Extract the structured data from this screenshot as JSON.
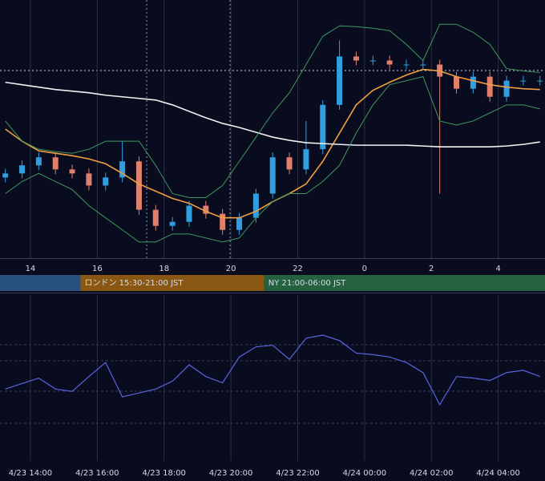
{
  "chart_data": [
    {
      "type": "candlestick",
      "x": [
        13.25,
        13.75,
        14.25,
        14.75,
        15.25,
        15.75,
        16.25,
        16.75,
        17.25,
        17.75,
        18.25,
        18.75,
        19.25,
        19.75,
        20.25,
        20.75,
        21.25,
        21.75,
        22.25,
        22.75,
        23.25,
        23.75,
        24.25,
        24.75,
        25.25,
        25.75,
        26.25,
        26.75,
        27.25,
        27.75,
        28.25,
        28.75,
        29.25
      ],
      "open": [
        50,
        52.5,
        57.5,
        62.5,
        55,
        52.5,
        45,
        50,
        60,
        30,
        20,
        22.5,
        32.5,
        27.5,
        17.5,
        25,
        40,
        62.5,
        55,
        67.5,
        95,
        125,
        122.5,
        122.5,
        120,
        120,
        120,
        112.5,
        105,
        112.5,
        100,
        110,
        110
      ],
      "high": [
        55.5,
        60.5,
        65.5,
        65.5,
        58,
        55.5,
        53,
        72.5,
        63,
        33,
        25.5,
        35.5,
        35.5,
        30.5,
        28,
        43,
        65.5,
        65.5,
        85,
        98,
        135,
        128,
        125.5,
        125.5,
        123,
        123,
        123,
        115.5,
        115.5,
        115.5,
        113,
        113,
        113
      ],
      "low": [
        47,
        49.5,
        54.5,
        52,
        49.5,
        42,
        42,
        47,
        27,
        17,
        17,
        19.5,
        24.5,
        14.5,
        14.5,
        22,
        37,
        52,
        52,
        64.5,
        92,
        119.5,
        119.5,
        117,
        117,
        117,
        40,
        102,
        102,
        97,
        97,
        107,
        107
      ],
      "close": [
        52.5,
        57.5,
        62.5,
        55,
        52.5,
        45,
        50,
        60,
        30,
        20,
        22.5,
        32.5,
        27.5,
        17.5,
        25,
        40,
        62.5,
        55,
        67.5,
        95,
        125,
        122.5,
        122.5,
        120,
        120,
        120,
        112.5,
        105,
        112.5,
        100,
        110,
        110,
        110
      ],
      "up_color": "#2f9fe0",
      "down_color": "#e07f6b",
      "lines": [
        {
          "color": "#f0a040",
          "values": [
            80,
            72.5,
            66.5,
            65,
            63.5,
            61.5,
            58.5,
            52.5,
            46,
            41.5,
            37,
            34,
            29,
            25,
            25,
            29,
            35,
            40,
            46,
            60,
            77.5,
            95,
            104,
            109,
            113.5,
            117,
            116,
            112.5,
            110,
            107.5,
            106,
            105,
            104.5
          ]
        },
        {
          "color": "#f2f2f2",
          "values": [
            109,
            107.5,
            106,
            104.5,
            103.5,
            102.5,
            101,
            100,
            99,
            98,
            95,
            91,
            87,
            83.5,
            81,
            78,
            75,
            73,
            71.5,
            71,
            70.5,
            70,
            70,
            70,
            70,
            69.5,
            69,
            69,
            69,
            69,
            69.5,
            70.5,
            72
          ]
        },
        {
          "color": "#3f9a5e",
          "values": [
            85,
            72.5,
            67.5,
            66,
            65,
            67.5,
            72.5,
            72.5,
            72.5,
            57.5,
            40,
            37.5,
            37.5,
            45,
            60,
            75,
            90,
            102.5,
            120,
            137.5,
            144,
            143.5,
            142.5,
            141,
            132.5,
            122.5,
            145,
            145,
            140,
            132.5,
            117.5,
            116,
            115
          ]
        },
        {
          "color": "#3f9a5e",
          "values": [
            40,
            47.5,
            52.5,
            47.5,
            42.5,
            32.5,
            25,
            17.5,
            10,
            10,
            15,
            15,
            12.5,
            10,
            12.5,
            25,
            35,
            40,
            40,
            47.5,
            57.5,
            77.5,
            95,
            107.5,
            110,
            112.5,
            85,
            82.5,
            85,
            90,
            95,
            95,
            92.5
          ]
        }
      ],
      "xlim": [
        13.09,
        29.4
      ],
      "ylim": [
        0,
        160
      ],
      "xticks": [
        14,
        16,
        18,
        20,
        22,
        {
          "value": 24,
          "label": "0"
        },
        {
          "value": 26,
          "label": "2"
        },
        {
          "value": 28,
          "label": "4"
        }
      ],
      "sessions": [
        {
          "start": 9,
          "end": 15.5,
          "color": "#27507f"
        },
        {
          "start": 15.5,
          "end": 21,
          "color": "#8a5712",
          "label": "ロンドン 15:30-21:00 JST"
        },
        {
          "start": 21,
          "end": 30,
          "color": "#25613f",
          "label": "NY 21:00-06:00 JST"
        }
      ]
    },
    {
      "type": "line",
      "x": [
        13.25,
        13.75,
        14.25,
        14.75,
        15.25,
        15.75,
        16.25,
        16.75,
        17.25,
        17.75,
        18.25,
        18.75,
        19.25,
        19.75,
        20.25,
        20.75,
        21.25,
        21.75,
        22.25,
        22.75,
        23.25,
        23.75,
        24.25,
        24.75,
        25.25,
        25.75,
        26.25,
        26.75,
        27.25,
        27.75,
        28.25,
        28.75,
        29.25
      ],
      "values": [
        46,
        49.5,
        53,
        46,
        44.5,
        54,
        63,
        41,
        43.5,
        46,
        51,
        61.5,
        54,
        50,
        66.5,
        73,
        74,
        65,
        78.5,
        80.5,
        77,
        69,
        68,
        66.5,
        63,
        56.5,
        36,
        54,
        53,
        51.5,
        56.5,
        58,
        54
      ],
      "color": "#5866e0",
      "xlim": [
        13.09,
        29.4
      ],
      "ylim": [
        0,
        100
      ],
      "xticks": [
        {
          "value": 14,
          "label": "4/23 14:00"
        },
        {
          "value": 16,
          "label": "4/23 16:00"
        },
        {
          "value": 18,
          "label": "4/23 18:00"
        },
        {
          "value": 20,
          "label": "4/23 20:00"
        },
        {
          "value": 22,
          "label": "4/23 22:00"
        },
        {
          "value": 24,
          "label": "4/24 00:00"
        },
        {
          "value": 26,
          "label": "4/24 02:00"
        },
        {
          "value": 28,
          "label": "4/24 04:00"
        }
      ]
    }
  ]
}
